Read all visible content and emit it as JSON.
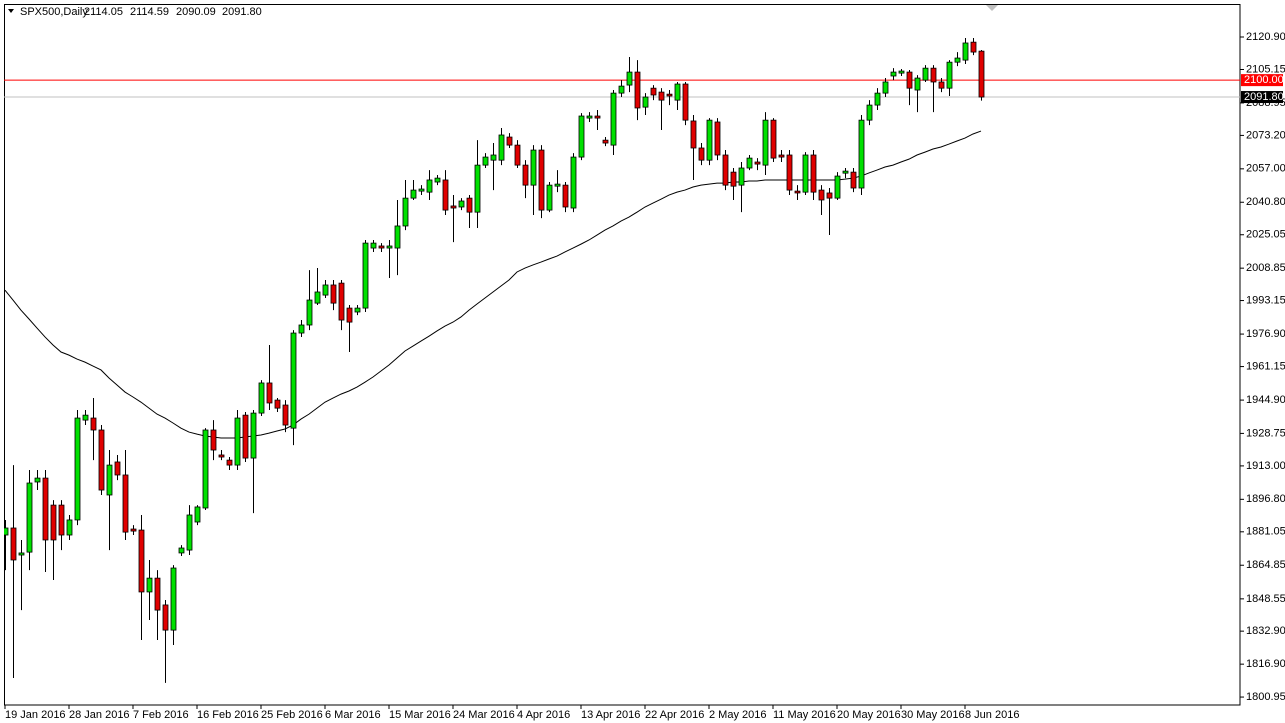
{
  "chart_data": {
    "type": "candlestick",
    "title": "SPX500,Daily",
    "header_ohlc": [
      "2114.05",
      "2114.59",
      "2090.09",
      "2091.80"
    ],
    "up_color": "#00e000",
    "down_color": "#e00000",
    "categories": [
      "19 Jan 2016",
      null,
      null,
      null,
      null,
      null,
      null,
      null,
      "28 Jan 2016",
      null,
      null,
      null,
      null,
      null,
      null,
      null,
      "7 Feb 2016",
      null,
      null,
      null,
      null,
      null,
      null,
      null,
      "16 Feb 2016",
      null,
      null,
      null,
      null,
      null,
      null,
      null,
      "25 Feb 2016",
      null,
      null,
      null,
      null,
      null,
      null,
      null,
      "6 Mar 2016",
      null,
      null,
      null,
      null,
      null,
      null,
      null,
      "15 Mar 2016",
      null,
      null,
      null,
      null,
      null,
      null,
      null,
      "24 Mar 2016",
      null,
      null,
      null,
      null,
      null,
      null,
      null,
      "4 Apr 2016",
      null,
      null,
      null,
      null,
      null,
      null,
      null,
      "13 Apr 2016",
      null,
      null,
      null,
      null,
      null,
      null,
      null,
      "22 Apr 2016",
      null,
      null,
      null,
      null,
      null,
      null,
      null,
      "2 May 2016",
      null,
      null,
      null,
      null,
      null,
      null,
      null,
      "11 May 2016",
      null,
      null,
      null,
      null,
      null,
      null,
      null,
      "20 May 2016",
      null,
      null,
      null,
      null,
      null,
      null,
      null,
      "30 May 2016",
      null,
      null,
      null,
      null,
      null,
      null,
      null,
      "8 Jun 2016",
      null,
      null
    ],
    "open": [
      1879.5,
      1882.9,
      1869.8,
      1871.2,
      1905.2,
      1907.1,
      1894.0,
      1894.0,
      1879.5,
      1886.8,
      1935.2,
      1936.2,
      1930.4,
      1898.9,
      1914.9,
      1908.6,
      1882.4,
      1881.9,
      1851.9,
      1858.6,
      1845.6,
      1833.4,
      1870.8,
      1872.2,
      1885.8,
      1892.6,
      1930.4,
      1918.3,
      1915.8,
      1913.4,
      1937.6,
      1916.8,
      1938.6,
      1953.2,
      1944.9,
      1942.5,
      1931.3,
      1977.4,
      1981.3,
      1991.9,
      1995.8,
      2000.7,
      2001.6,
      1989.5,
      1987.6,
      1989.5,
      2018.6,
      2019.6,
      2018.6,
      2018.6,
      2029.3,
      2042.8,
      2046.2,
      2045.7,
      2050.6,
      2051.6,
      2039.0,
      2038.5,
      2042.8,
      2036.0,
      2058.8,
      2061.2,
      2061.2,
      2072.4,
      2068.5,
      2058.8,
      2049.1,
      2066.1,
      2037.0,
      2048.6,
      2049.1,
      2038.0,
      2062.7,
      2081.6,
      2082.6,
      2070.9,
      2068.5,
      2093.7,
      2097.6,
      2103.9,
      2086.9,
      2096.1,
      2094.2,
      2093.2,
      2090.3,
      2098.1,
      2080.2,
      2067.1,
      2061.2,
      2079.7,
      2063.7,
      2055.4,
      2049.1,
      2057.4,
      2060.3,
      2058.8,
      2080.6,
      2063.7,
      2063.7,
      2046.2,
      2045.7,
      2063.7,
      2046.7,
      2045.3,
      2042.8,
      2054.9,
      2055.4,
      2047.7,
      2080.6,
      2087.9,
      2093.7,
      2102.0,
      2103.4,
      2103.9,
      2095.2,
      2100.0,
      2105.8,
      2099.1,
      2096.1,
      2108.7,
      2109.7,
      2118.4,
      2114.05
    ],
    "high": [
      1886.8,
      1913.4,
      1877.1,
      1911.0,
      1911.0,
      1911.0,
      1896.4,
      1896.4,
      1889.2,
      1940.1,
      1940.1,
      1945.9,
      1932.8,
      1920.7,
      1918.3,
      1920.7,
      1884.3,
      1889.2,
      1867.4,
      1862.5,
      1848.0,
      1864.9,
      1874.6,
      1894.0,
      1894.0,
      1931.3,
      1935.2,
      1920.7,
      1917.3,
      1940.1,
      1939.1,
      1940.1,
      1954.6,
      1971.6,
      1945.9,
      1944.9,
      1978.8,
      1983.7,
      2007.9,
      2008.9,
      2003.1,
      2003.1,
      2003.1,
      1991.0,
      1991.0,
      2022.5,
      2022.5,
      2021.0,
      2022.5,
      2041.9,
      2051.6,
      2051.6,
      2049.1,
      2056.4,
      2054.0,
      2056.4,
      2044.3,
      2042.8,
      2044.3,
      2070.9,
      2064.6,
      2069.5,
      2076.8,
      2074.3,
      2070.9,
      2061.2,
      2068.5,
      2068.5,
      2050.6,
      2056.4,
      2050.6,
      2064.6,
      2084.0,
      2084.5,
      2085.5,
      2072.4,
      2095.2,
      2100.0,
      2111.2,
      2109.7,
      2093.7,
      2097.6,
      2096.1,
      2095.2,
      2099.1,
      2099.1,
      2083.1,
      2069.5,
      2081.6,
      2081.6,
      2066.1,
      2057.4,
      2060.3,
      2063.7,
      2062.2,
      2084.5,
      2081.6,
      2066.1,
      2066.1,
      2049.1,
      2065.1,
      2066.1,
      2049.1,
      2047.7,
      2055.4,
      2057.4,
      2057.4,
      2083.1,
      2090.3,
      2096.1,
      2101.0,
      2105.8,
      2105.4,
      2104.9,
      2102.4,
      2107.3,
      2107.3,
      2101.0,
      2109.7,
      2113.6,
      2120.4,
      2120.4,
      2114.59
    ],
    "low": [
      1862.5,
      1810.2,
      1843.1,
      1862.5,
      1901.3,
      1861.6,
      1857.7,
      1872.2,
      1877.1,
      1884.3,
      1932.8,
      1915.8,
      1898.9,
      1872.2,
      1906.1,
      1877.1,
      1879.5,
      1828.6,
      1838.3,
      1828.6,
      1807.8,
      1826.2,
      1869.3,
      1869.8,
      1884.3,
      1891.6,
      1915.8,
      1915.8,
      1911.0,
      1911.0,
      1914.9,
      1890.1,
      1937.2,
      1940.1,
      1939.1,
      1929.4,
      1923.1,
      1975.5,
      1978.8,
      1991.0,
      1994.4,
      1988.5,
      1978.8,
      1968.2,
      1986.1,
      1987.6,
      2016.7,
      2016.7,
      2004.1,
      2005.5,
      2027.3,
      2041.9,
      2044.3,
      2041.9,
      2049.1,
      2034.6,
      2021.5,
      2037.0,
      2028.3,
      2028.3,
      2057.4,
      2046.7,
      2058.8,
      2067.1,
      2057.4,
      2042.8,
      2034.6,
      2033.1,
      2036.0,
      2045.7,
      2036.0,
      2036.0,
      2061.2,
      2079.7,
      2075.8,
      2068.0,
      2063.7,
      2091.8,
      2094.2,
      2080.6,
      2083.1,
      2090.3,
      2075.8,
      2087.9,
      2085.5,
      2078.2,
      2051.6,
      2058.8,
      2058.8,
      2061.2,
      2046.7,
      2041.9,
      2036.0,
      2056.4,
      2056.4,
      2054.0,
      2060.3,
      2060.3,
      2044.3,
      2041.9,
      2044.3,
      2041.9,
      2034.6,
      2024.9,
      2041.9,
      2052.5,
      2045.7,
      2044.3,
      2078.2,
      2085.5,
      2091.8,
      2100.0,
      2102.0,
      2087.9,
      2084.5,
      2099.1,
      2084.5,
      2094.2,
      2092.3,
      2106.8,
      2107.8,
      2112.1,
      2090.09
    ],
    "close": [
      1882.9,
      1867.4,
      1870.8,
      1904.7,
      1907.1,
      1877.1,
      1877.1,
      1879.5,
      1886.8,
      1936.2,
      1937.6,
      1930.4,
      1901.3,
      1913.4,
      1908.6,
      1880.9,
      1881.4,
      1851.9,
      1858.6,
      1843.1,
      1833.4,
      1863.5,
      1873.2,
      1889.2,
      1893.1,
      1930.4,
      1920.7,
      1917.3,
      1913.4,
      1936.2,
      1916.8,
      1938.6,
      1953.2,
      1943.5,
      1941.0,
      1932.8,
      1977.4,
      1981.3,
      1993.4,
      1997.3,
      2000.7,
      1991.9,
      1983.7,
      1982.7,
      1989.5,
      2021.0,
      2021.0,
      2018.6,
      2019.6,
      2029.3,
      2042.8,
      2046.7,
      2047.2,
      2051.6,
      2052.5,
      2037.0,
      2038.0,
      2041.4,
      2036.0,
      2058.8,
      2062.7,
      2063.7,
      2073.4,
      2068.5,
      2058.8,
      2049.1,
      2066.1,
      2037.0,
      2049.1,
      2049.6,
      2038.5,
      2062.7,
      2082.6,
      2082.6,
      2081.6,
      2069.5,
      2093.7,
      2097.1,
      2103.9,
      2086.5,
      2091.8,
      2092.8,
      2090.3,
      2092.3,
      2098.1,
      2080.6,
      2067.1,
      2061.2,
      2080.6,
      2063.7,
      2049.1,
      2048.6,
      2057.4,
      2062.2,
      2059.3,
      2080.6,
      2062.2,
      2062.7,
      2046.7,
      2045.3,
      2063.7,
      2045.7,
      2041.9,
      2042.8,
      2053.5,
      2055.9,
      2047.7,
      2080.6,
      2087.9,
      2093.7,
      2099.1,
      2103.9,
      2104.4,
      2096.1,
      2101.0,
      2105.8,
      2099.1,
      2096.1,
      2108.7,
      2110.7,
      2118.0,
      2113.6,
      2091.8
    ],
    "moving_average": {
      "color": "#000000",
      "values": [
        1998.2,
        1993.4,
        1988.5,
        1984.2,
        1979.8,
        1975.5,
        1971.6,
        1968.2,
        1966.7,
        1964.8,
        1963.3,
        1961.4,
        1959.5,
        1955.6,
        1952.2,
        1948.8,
        1946.4,
        1943.9,
        1941.0,
        1938.1,
        1936.2,
        1933.8,
        1931.3,
        1929.4,
        1928.4,
        1927.5,
        1927.0,
        1926.5,
        1926.5,
        1926.5,
        1927.0,
        1927.5,
        1928.0,
        1928.9,
        1929.9,
        1930.9,
        1932.8,
        1935.7,
        1938.1,
        1941.0,
        1943.9,
        1945.9,
        1947.8,
        1949.3,
        1951.2,
        1953.6,
        1956.1,
        1959.0,
        1961.9,
        1965.3,
        1968.7,
        1971.1,
        1973.5,
        1975.9,
        1978.4,
        1980.8,
        1982.7,
        1985.2,
        1988.5,
        1991.5,
        1994.4,
        1997.3,
        2000.2,
        2003.1,
        2007.0,
        2008.9,
        2010.4,
        2011.8,
        2013.3,
        2014.7,
        2016.7,
        2018.6,
        2020.5,
        2022.5,
        2024.9,
        2027.3,
        2029.3,
        2031.7,
        2033.6,
        2036.0,
        2038.5,
        2040.4,
        2042.3,
        2044.3,
        2045.7,
        2046.7,
        2048.2,
        2049.1,
        2049.6,
        2050.1,
        2050.1,
        2050.6,
        2050.6,
        2051.1,
        2051.1,
        2051.6,
        2051.6,
        2051.6,
        2051.6,
        2051.6,
        2051.6,
        2051.6,
        2051.6,
        2051.6,
        2051.6,
        2052.0,
        2052.5,
        2053.5,
        2055.0,
        2056.4,
        2057.9,
        2058.8,
        2060.3,
        2061.7,
        2063.7,
        2065.1,
        2066.6,
        2067.6,
        2069.0,
        2070.5,
        2071.9,
        2073.9,
        2075.3
      ]
    },
    "ylim": [
      1797.1,
      2136.9
    ],
    "yticks": [
      {
        "value": 2120.9,
        "label": "2120.90"
      },
      2105.15,
      2088.95,
      {
        "value": 2073.2,
        "label": "2073.20"
      },
      {
        "value": 2057,
        "label": "2057.00"
      },
      {
        "value": 2040.8,
        "label": "2040.80"
      },
      2025.05,
      2008.85,
      1993.15,
      {
        "value": 1976.9,
        "label": "1976.90"
      },
      1961.15,
      {
        "value": 1944.9,
        "label": "1944.90"
      },
      1928.75,
      {
        "value": 1913,
        "label": "1913.00"
      },
      {
        "value": 1896.8,
        "label": "1896.80"
      },
      1881.05,
      1864.85,
      1848.55,
      {
        "value": 1832.9,
        "label": "1832.90"
      },
      {
        "value": 1816.9,
        "label": "1816.90"
      },
      1800.95
    ],
    "hlines": [
      {
        "value": 2100,
        "label": "2100.00",
        "color": "#ff0000"
      }
    ],
    "last_price": {
      "value": 2091.8,
      "label": "2091.80",
      "color": "#c0c0c0"
    },
    "grid": false
  }
}
